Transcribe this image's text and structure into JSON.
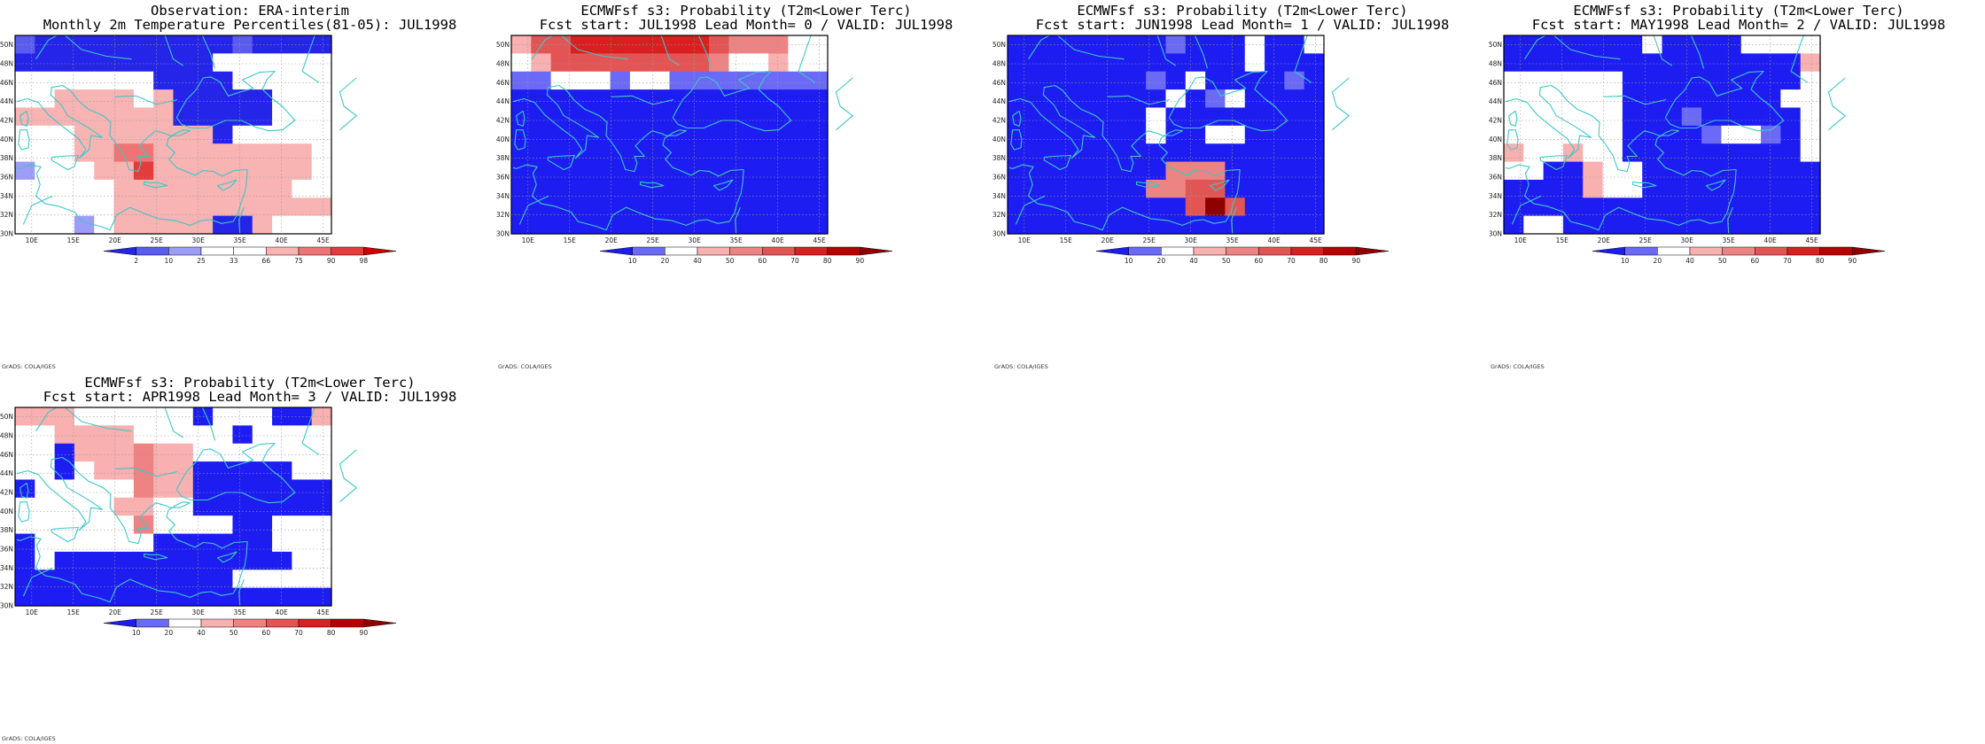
{
  "figure": {
    "credit": "GrADS: COLA/IGES",
    "x_ticks": [
      "10E",
      "15E",
      "20E",
      "25E",
      "30E",
      "35E",
      "40E",
      "45E"
    ],
    "y_ticks": [
      "50N",
      "48N",
      "46N",
      "44N",
      "42N",
      "40N",
      "38N",
      "36N",
      "34N",
      "32N",
      "30N"
    ]
  },
  "colors": {
    "obs_scale": [
      "#2525ea",
      "#5b5bf0",
      "#9d9df6",
      "#ffffff",
      "#ffffff",
      "#f8b3b3",
      "#ef7474",
      "#e63b3b",
      "#cc0000"
    ],
    "prob_scale": [
      "#1d1df2",
      "#6a6af6",
      "#ffffff",
      "#f8b0b0",
      "#ee8383",
      "#e35555",
      "#d91f1f",
      "#b90000",
      "#8f0000"
    ],
    "coast": "#3cc8c8"
  },
  "panels": [
    {
      "id": "obs",
      "title_line1": "Observation: ERA-interim",
      "title_line2": "Monthly 2m Temperature Percentiles(81-05): JUL1998",
      "colorbar_labels": [
        "2",
        "10",
        "25",
        "33",
        "66",
        "75",
        "90",
        "98"
      ],
      "rows": [
        "1000000000010000",
        "0000000000333333",
        "4444444000033333",
        "4455554500000333",
        "5555555500000333",
        "4445555555033333",
        "4445566555555553",
        "2433557555555554",
        "3433455555555534",
        "3333455555555555",
        "3332355555005333"
      ]
    },
    {
      "id": "lead0",
      "title_line1": "ECMWFsf s3: Probability (T2m<Lower Terc)",
      "title_line2": "Fcst start: JUL1998  Lead Month= 0 / VALID: JUL1998",
      "colorbar_labels": [
        "10",
        "20",
        "40",
        "50",
        "60",
        "70",
        "80",
        "90"
      ],
      "rows": [
        "3556666666544422",
        "2355555555422322",
        "1122212211111111",
        "0000000000000000",
        "0000000000000000",
        "0000000000000000",
        "0000000000000000",
        "0000000000000000",
        "0000000000000000",
        "0000000000000000",
        "0000000000000000"
      ]
    },
    {
      "id": "lead1",
      "title_line1": "ECMWFsf s3: Probability (T2m<Lower Terc)",
      "title_line2": "Fcst start: JUN1998  Lead Month= 1 / VALID: JUL1998",
      "colorbar_labels": [
        "10",
        "20",
        "40",
        "50",
        "60",
        "70",
        "80",
        "90"
      ],
      "rows": [
        "0000000010002002",
        "0000000000002000",
        "0000000102000010",
        "0000000020120000",
        "0000000200000000",
        "0000000200220000",
        "0000000000000000",
        "0000000044400000",
        "0000000445500000",
        "0000000005850000",
        "0000000000000000"
      ]
    },
    {
      "id": "lead2",
      "title_line1": "ECMWFsf s3: Probability (T2m<Lower Terc)",
      "title_line2": "Fcst start: MAY1998  Lead Month= 2 / VALID: JUL1998",
      "colorbar_labels": [
        "10",
        "20",
        "40",
        "50",
        "60",
        "70",
        "80",
        "90"
      ],
      "rows": [
        "0000000200002222",
        "0000000000000003",
        "2222220000000002",
        "2222220000000022",
        "2222220001000002",
        "2222220000122102",
        "3223220000000002",
        "2200322000000000",
        "0000322000000000",
        "0000000000000000",
        "0220000000000000"
      ]
    },
    {
      "id": "lead3",
      "title_line1": "ECMWFsf s3: Probability (T2m<Lower Terc)",
      "title_line2": "Fcst start: APR1998  Lead Month= 3 / VALID: JUL1998",
      "colorbar_labels": [
        "10",
        "20",
        "40",
        "50",
        "60",
        "70",
        "80",
        "90"
      ],
      "rows": [
        "3332222220222003",
        "2233332222202222",
        "2203334332222222",
        "2202334330000022",
        "0222224330000000",
        "2222233220000000",
        "2222224222200222",
        "0222222000000222",
        "0200000000000022",
        "0000000000022222",
        "0000000000000000"
      ]
    }
  ]
}
